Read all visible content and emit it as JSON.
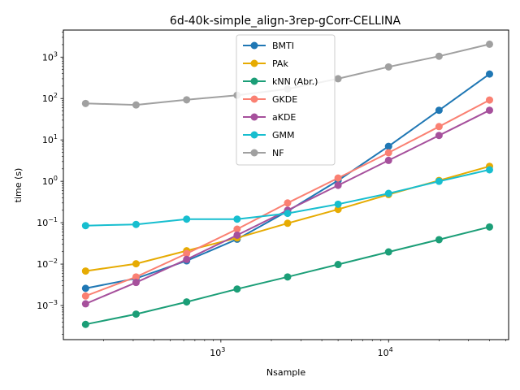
{
  "chart_data": {
    "type": "line",
    "title": "6d-40k-simple_align-3rep-gCorr-CELLINA",
    "xlabel": "Nsample",
    "ylabel": "time (s)",
    "xscale": "log",
    "yscale": "log",
    "xlim": [
      115,
      52000
    ],
    "ylim": [
      0.00015,
      4500
    ],
    "x_ticks": [
      {
        "value": 1000,
        "base": "10",
        "exp": "3"
      },
      {
        "value": 10000,
        "base": "10",
        "exp": "4"
      }
    ],
    "y_ticks": [
      {
        "value": 0.001,
        "base": "10",
        "exp": "−3"
      },
      {
        "value": 0.01,
        "base": "10",
        "exp": "−2"
      },
      {
        "value": 0.1,
        "base": "10",
        "exp": "−1"
      },
      {
        "value": 1,
        "base": "10",
        "exp": "0"
      },
      {
        "value": 10,
        "base": "10",
        "exp": "1"
      },
      {
        "value": 100,
        "base": "10",
        "exp": "2"
      },
      {
        "value": 1000,
        "base": "10",
        "exp": "3"
      }
    ],
    "grid": false,
    "legend_position": "top-center",
    "x": [
      156,
      312,
      625,
      1250,
      2500,
      5000,
      10000,
      20000,
      40000
    ],
    "series": [
      {
        "name": "BMTI",
        "color": "#1f77b4",
        "values": [
          0.0026,
          0.0045,
          0.012,
          0.04,
          0.19,
          1.05,
          7.0,
          52,
          390
        ]
      },
      {
        "name": "PAk",
        "color": "#e6ab02",
        "values": [
          0.0068,
          0.0102,
          0.021,
          0.043,
          0.097,
          0.21,
          0.48,
          1.05,
          2.3
        ]
      },
      {
        "name": "kNN (Abr.)",
        "color": "#1b9e77",
        "values": [
          0.00035,
          0.00062,
          0.00122,
          0.0025,
          0.0049,
          0.0098,
          0.0197,
          0.039,
          0.079
        ]
      },
      {
        "name": "GKDE",
        "color": "#fa8072",
        "values": [
          0.0017,
          0.0049,
          0.018,
          0.07,
          0.3,
          1.2,
          4.9,
          21,
          92
        ]
      },
      {
        "name": "aKDE",
        "color": "#a6509c",
        "values": [
          0.0011,
          0.0036,
          0.013,
          0.05,
          0.2,
          0.8,
          3.2,
          12.8,
          52
        ]
      },
      {
        "name": "GMM",
        "color": "#17becf",
        "values": [
          0.085,
          0.091,
          0.122,
          0.122,
          0.168,
          0.28,
          0.51,
          1.0,
          1.9
        ]
      },
      {
        "name": "NF",
        "color": "#a0a0a0",
        "values": [
          76,
          70,
          93,
          120,
          170,
          300,
          580,
          1050,
          2050
        ]
      }
    ]
  }
}
